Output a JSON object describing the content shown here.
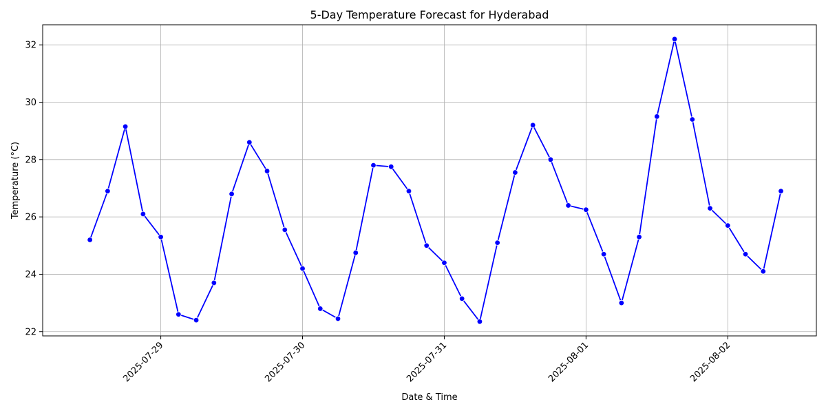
{
  "chart_data": {
    "type": "line",
    "title": "5-Day Temperature Forecast for Hyderabad",
    "xlabel": "Date & Time",
    "ylabel": "Temperature (°C)",
    "grid": true,
    "x_ticks": [
      "2025-07-29",
      "2025-07-30",
      "2025-07-31",
      "2025-08-01",
      "2025-08-02"
    ],
    "y_ticks": [
      22,
      24,
      26,
      28,
      30,
      32
    ],
    "xlim": [
      "2025-07-28 04:00",
      "2025-08-02 15:00"
    ],
    "ylim": [
      21.85,
      32.7
    ],
    "series": [
      {
        "color": "#0000ff",
        "marker": "circle",
        "x": [
          "2025-07-28 12:00",
          "2025-07-28 15:00",
          "2025-07-28 18:00",
          "2025-07-28 21:00",
          "2025-07-29 00:00",
          "2025-07-29 03:00",
          "2025-07-29 06:00",
          "2025-07-29 09:00",
          "2025-07-29 12:00",
          "2025-07-29 15:00",
          "2025-07-29 18:00",
          "2025-07-29 21:00",
          "2025-07-30 00:00",
          "2025-07-30 03:00",
          "2025-07-30 06:00",
          "2025-07-30 09:00",
          "2025-07-30 12:00",
          "2025-07-30 15:00",
          "2025-07-30 18:00",
          "2025-07-30 21:00",
          "2025-07-31 00:00",
          "2025-07-31 03:00",
          "2025-07-31 06:00",
          "2025-07-31 09:00",
          "2025-07-31 12:00",
          "2025-07-31 15:00",
          "2025-07-31 18:00",
          "2025-07-31 21:00",
          "2025-08-01 00:00",
          "2025-08-01 03:00",
          "2025-08-01 06:00",
          "2025-08-01 09:00",
          "2025-08-01 12:00",
          "2025-08-01 15:00",
          "2025-08-01 18:00",
          "2025-08-01 21:00",
          "2025-08-02 00:00",
          "2025-08-02 03:00",
          "2025-08-02 06:00",
          "2025-08-02 09:00"
        ],
        "values": [
          25.2,
          26.9,
          29.15,
          26.1,
          25.3,
          22.6,
          22.4,
          23.7,
          26.8,
          28.6,
          27.6,
          25.55,
          24.2,
          22.8,
          22.45,
          24.75,
          27.8,
          27.75,
          26.9,
          25.0,
          24.4,
          23.15,
          22.35,
          25.1,
          27.55,
          29.2,
          28.0,
          26.4,
          26.25,
          24.7,
          23.0,
          25.3,
          29.5,
          32.2,
          29.4,
          26.3,
          25.7,
          24.7,
          24.1,
          26.9
        ]
      }
    ]
  }
}
